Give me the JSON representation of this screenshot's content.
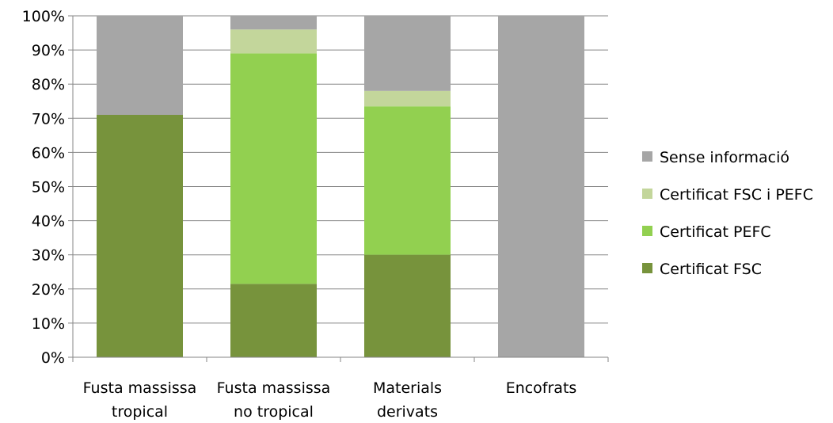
{
  "chart_data": {
    "type": "bar",
    "stacked": true,
    "percent": true,
    "categories": [
      [
        "Fusta massissa",
        "tropical"
      ],
      [
        "Fusta massissa",
        "no tropical"
      ],
      [
        "Materials",
        "derivats"
      ],
      [
        "Encofrats"
      ]
    ],
    "series": [
      {
        "name": "Certificat FSC",
        "color": "#77933c",
        "values": [
          71,
          21.5,
          30,
          0
        ]
      },
      {
        "name": "Certificat PEFC",
        "color": "#92d050",
        "values": [
          0,
          67.5,
          43.5,
          0
        ]
      },
      {
        "name": "Certificat FSC i PEFC",
        "color": "#c3d69b",
        "values": [
          0,
          7,
          4.5,
          0
        ]
      },
      {
        "name": "Sense informació",
        "color": "#a6a6a6",
        "values": [
          29,
          4,
          22,
          100
        ]
      }
    ],
    "ylim": [
      0,
      100
    ],
    "yticks": [
      "0%",
      "10%",
      "20%",
      "30%",
      "40%",
      "50%",
      "60%",
      "70%",
      "80%",
      "90%",
      "100%"
    ],
    "grid": true,
    "legend": {
      "position": "right",
      "order": [
        "Sense informació",
        "Certificat FSC i PEFC",
        "Certificat PEFC",
        "Certificat FSC"
      ]
    },
    "title": "",
    "xlabel": "",
    "ylabel": ""
  }
}
